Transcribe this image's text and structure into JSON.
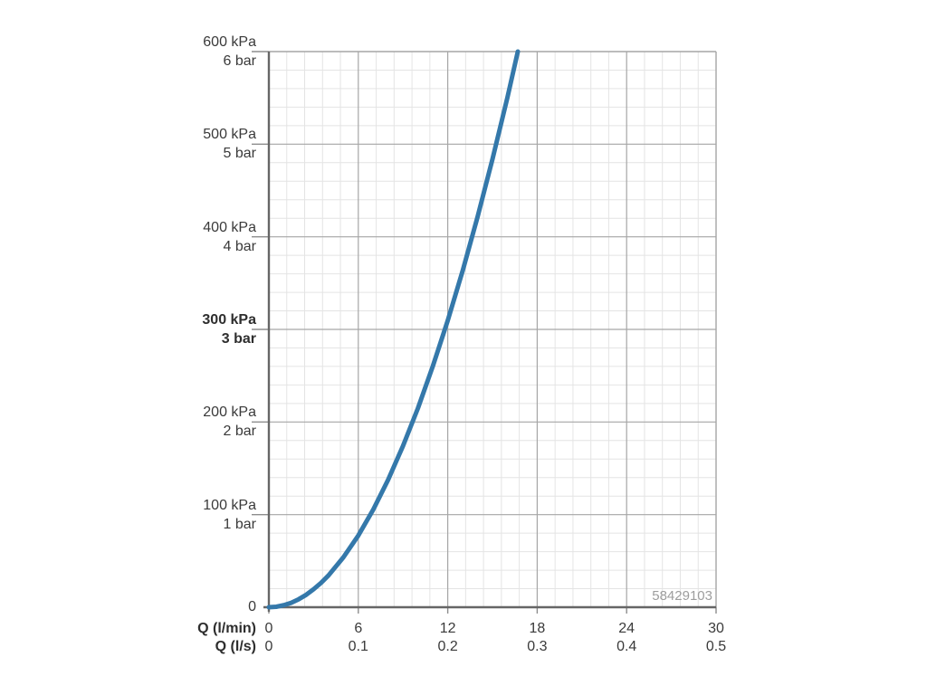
{
  "colors": {
    "curve": "#3478aa",
    "grid_minor": "#e4e4e4",
    "grid_major": "#a6a6a6",
    "axis": "#666666",
    "tick": "#8d8d8d",
    "label_text": "#3a3a3a",
    "product_number_text": "#9d9d9d",
    "background": "#ffffff"
  },
  "chart_data": {
    "type": "line",
    "title": "",
    "description": "Pressure vs flow-rate characteristic curve",
    "x_axis": {
      "row1_label": "Q (l/min)",
      "row2_label": "Q (l/s)",
      "row1_ticks": [
        {
          "text": "0",
          "value": 0
        },
        {
          "text": "6",
          "value": 6
        },
        {
          "text": "12",
          "value": 12
        },
        {
          "text": "18",
          "value": 18
        },
        {
          "text": "24",
          "value": 24
        },
        {
          "text": "30",
          "value": 30
        }
      ],
      "row2_ticks": [
        {
          "text": "0",
          "value": 0
        },
        {
          "text": "0.1",
          "value": 6
        },
        {
          "text": "0.2",
          "value": 12
        },
        {
          "text": "0.3",
          "value": 18
        },
        {
          "text": "0.4",
          "value": 24
        },
        {
          "text": "0.5",
          "value": 30
        }
      ],
      "range_lmin": [
        0,
        30
      ],
      "major_step_lmin": 6,
      "minor_divisions_per_major": 5,
      "grid": true
    },
    "y_axis": {
      "ticks": [
        {
          "line1": "600 kPa",
          "line2": "6 bar",
          "value": 600,
          "bold": false
        },
        {
          "line1": "500 kPa",
          "line2": "5 bar",
          "value": 500,
          "bold": false
        },
        {
          "line1": "400 kPa",
          "line2": "4 bar",
          "value": 400,
          "bold": false
        },
        {
          "line1": "300 kPa",
          "line2": "3 bar",
          "value": 300,
          "bold": true
        },
        {
          "line1": "200 kPa",
          "line2": "2 bar",
          "value": 200,
          "bold": false
        },
        {
          "line1": "100 kPa",
          "line2": "1 bar",
          "value": 100,
          "bold": false
        }
      ],
      "zero_label": "0",
      "range_kpa": [
        0,
        600
      ],
      "major_step_kpa": 100,
      "minor_divisions_per_major": 5,
      "grid": true
    },
    "series": [
      {
        "name": "flow-pressure-curve",
        "points_lmin_kpa": [
          [
            0,
            0
          ],
          [
            0.5,
            0.5
          ],
          [
            1,
            2.2
          ],
          [
            1.5,
            4.8
          ],
          [
            2,
            8.6
          ],
          [
            2.5,
            13.4
          ],
          [
            3,
            19.4
          ],
          [
            3.5,
            26.3
          ],
          [
            4,
            34.4
          ],
          [
            5,
            53.8
          ],
          [
            6,
            77.4
          ],
          [
            7,
            105.4
          ],
          [
            8,
            137.6
          ],
          [
            9,
            174.2
          ],
          [
            10,
            215.0
          ],
          [
            11,
            260.2
          ],
          [
            12,
            309.6
          ],
          [
            13,
            363.4
          ],
          [
            14,
            421.4
          ],
          [
            15,
            483.8
          ],
          [
            16,
            550.4
          ],
          [
            16.7,
            600
          ]
        ]
      }
    ],
    "legend": null,
    "annotation": {
      "product_number": "58429103"
    }
  }
}
